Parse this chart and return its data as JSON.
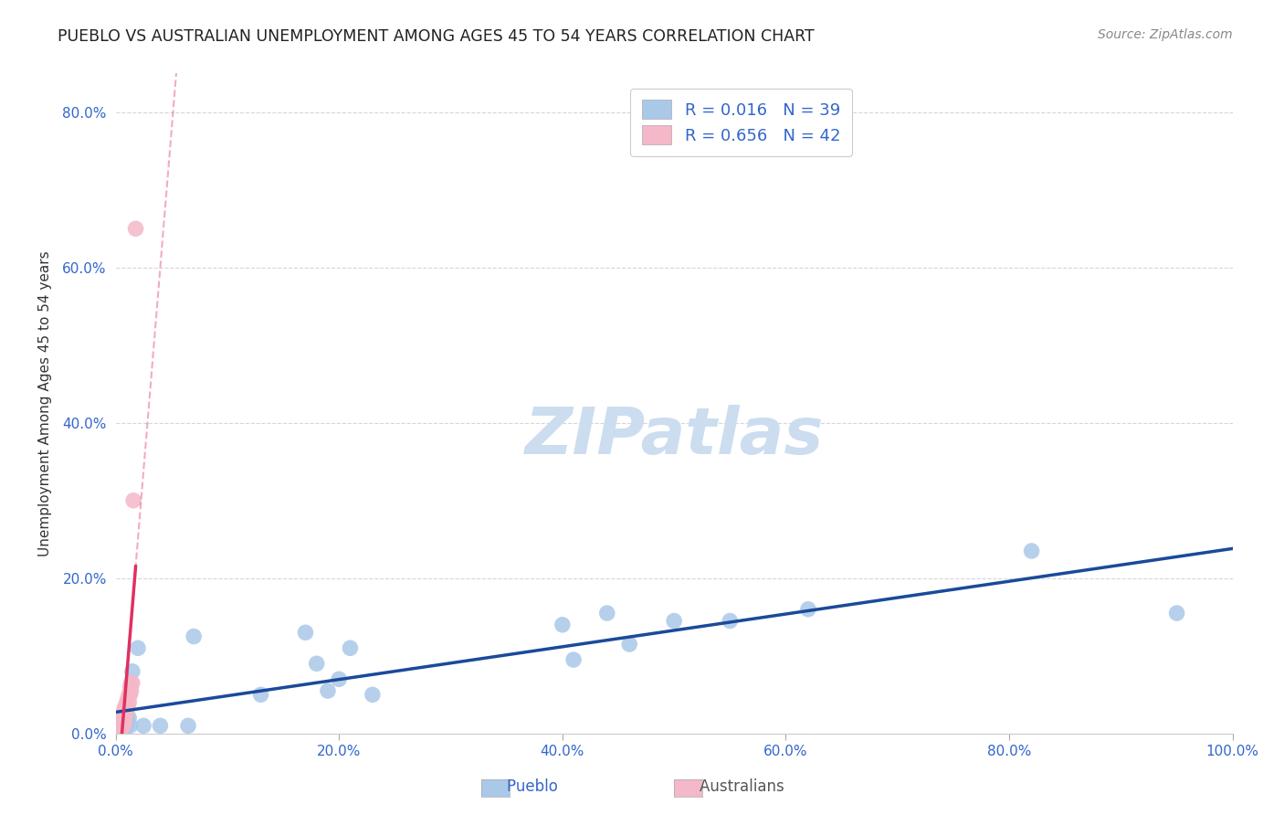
{
  "title": "PUEBLO VS AUSTRALIAN UNEMPLOYMENT AMONG AGES 45 TO 54 YEARS CORRELATION CHART",
  "source": "Source: ZipAtlas.com",
  "ylabel": "Unemployment Among Ages 45 to 54 years",
  "xlim": [
    0.0,
    1.0
  ],
  "ylim": [
    0.0,
    0.85
  ],
  "xticks": [
    0.0,
    0.2,
    0.4,
    0.6,
    0.8,
    1.0
  ],
  "xtick_labels": [
    "0.0%",
    "20.0%",
    "40.0%",
    "60.0%",
    "80.0%",
    "100.0%"
  ],
  "yticks": [
    0.0,
    0.2,
    0.4,
    0.6,
    0.8
  ],
  "ytick_labels": [
    "0.0%",
    "20.0%",
    "40.0%",
    "60.0%",
    "80.0%"
  ],
  "pueblo_R": "0.016",
  "pueblo_N": "39",
  "australian_R": "0.656",
  "australian_N": "42",
  "pueblo_color": "#aac8e8",
  "australian_color": "#f4b8c8",
  "pueblo_line_color": "#1a4a9a",
  "australian_line_color": "#e03060",
  "legend_text_color": "#3366cc",
  "title_color": "#222222",
  "background_color": "#ffffff",
  "grid_color": "#cccccc",
  "pueblo_x": [
    0.005,
    0.005,
    0.005,
    0.006,
    0.006,
    0.007,
    0.007,
    0.007,
    0.008,
    0.008,
    0.009,
    0.009,
    0.01,
    0.01,
    0.01,
    0.012,
    0.013,
    0.015,
    0.02,
    0.025,
    0.04,
    0.065,
    0.07,
    0.13,
    0.17,
    0.18,
    0.19,
    0.2,
    0.21,
    0.23,
    0.4,
    0.41,
    0.44,
    0.46,
    0.5,
    0.55,
    0.62,
    0.82,
    0.95
  ],
  "pueblo_y": [
    0.02,
    0.015,
    0.01,
    0.015,
    0.01,
    0.025,
    0.02,
    0.01,
    0.015,
    0.01,
    0.02,
    0.01,
    0.025,
    0.02,
    0.01,
    0.02,
    0.01,
    0.08,
    0.11,
    0.01,
    0.01,
    0.01,
    0.125,
    0.05,
    0.13,
    0.09,
    0.055,
    0.07,
    0.11,
    0.05,
    0.14,
    0.095,
    0.155,
    0.115,
    0.145,
    0.145,
    0.16,
    0.235,
    0.155
  ],
  "australian_x": [
    0.002,
    0.003,
    0.003,
    0.004,
    0.004,
    0.004,
    0.005,
    0.005,
    0.005,
    0.005,
    0.005,
    0.006,
    0.006,
    0.006,
    0.006,
    0.007,
    0.007,
    0.007,
    0.007,
    0.007,
    0.008,
    0.008,
    0.008,
    0.008,
    0.008,
    0.009,
    0.009,
    0.009,
    0.01,
    0.01,
    0.01,
    0.011,
    0.011,
    0.012,
    0.012,
    0.013,
    0.013,
    0.014,
    0.014,
    0.015,
    0.016,
    0.018
  ],
  "australian_y": [
    0.005,
    0.005,
    0.008,
    0.005,
    0.008,
    0.005,
    0.005,
    0.008,
    0.008,
    0.01,
    0.012,
    0.008,
    0.01,
    0.012,
    0.015,
    0.01,
    0.012,
    0.015,
    0.02,
    0.025,
    0.015,
    0.02,
    0.025,
    0.03,
    0.033,
    0.025,
    0.03,
    0.035,
    0.03,
    0.035,
    0.04,
    0.035,
    0.045,
    0.04,
    0.05,
    0.05,
    0.06,
    0.055,
    0.065,
    0.065,
    0.3,
    0.65
  ]
}
